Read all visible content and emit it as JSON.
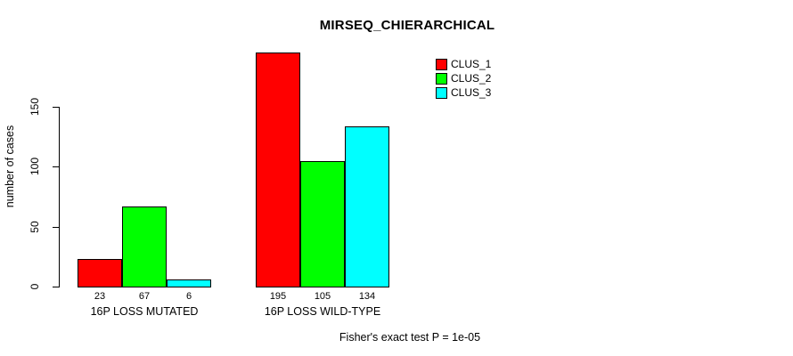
{
  "chart_data": {
    "type": "bar",
    "title": "MIRSEQ_CHIERARCHICAL",
    "ylabel": "number of cases",
    "xlabel": "",
    "categories": [
      "16P LOSS MUTATED",
      "16P LOSS WILD-TYPE"
    ],
    "series": [
      {
        "name": "CLUS_1",
        "color": "#FF0000",
        "values": [
          23,
          195
        ]
      },
      {
        "name": "CLUS_2",
        "color": "#00FF00",
        "values": [
          67,
          105
        ]
      },
      {
        "name": "CLUS_3",
        "color": "#00FFFF",
        "values": [
          6,
          134
        ]
      }
    ],
    "yticks": [
      0,
      50,
      100,
      150
    ],
    "ylim": [
      0,
      200
    ],
    "grid": false,
    "bar_value_labels_shown": true,
    "legend_position": "top-right",
    "annotation": "Fisher's exact test P = 1e-05",
    "bar_border_color": "#000000",
    "background_color": "#FFFFFF"
  }
}
